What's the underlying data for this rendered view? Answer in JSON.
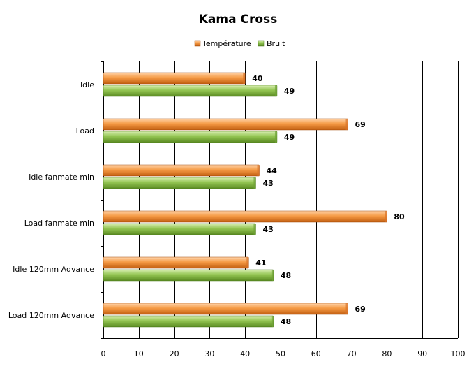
{
  "chart_data": {
    "type": "bar",
    "orientation": "horizontal",
    "title": "Kama Cross",
    "categories": [
      "Idle",
      "Load",
      "Idle fanmate  min",
      "Load fanmate  min",
      "Idle 120mm Advance",
      "Load 120mm Advance"
    ],
    "series": [
      {
        "name": "Température",
        "color": "#f08a2e",
        "values": [
          40,
          69,
          44,
          80,
          41,
          69
        ]
      },
      {
        "name": "Bruit",
        "color": "#8cc04a",
        "values": [
          49,
          49,
          43,
          43,
          48,
          48
        ]
      }
    ],
    "xlim": [
      0,
      100
    ],
    "xticks": [
      0,
      10,
      20,
      30,
      40,
      50,
      60,
      70,
      80,
      90,
      100
    ],
    "grid": true,
    "legend_position": "top-center",
    "data_labels": true
  }
}
